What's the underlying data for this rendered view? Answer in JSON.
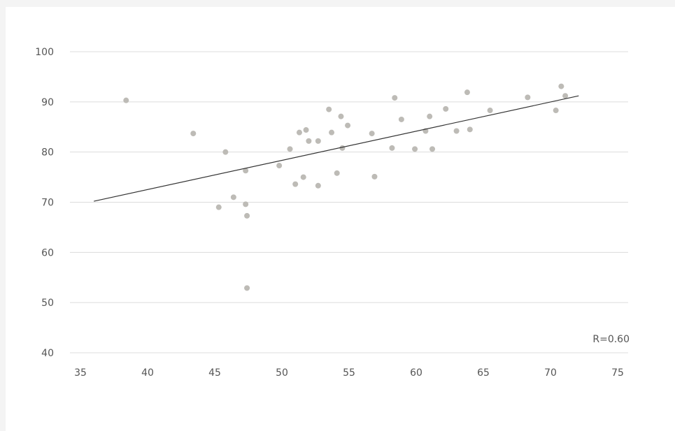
{
  "chart_data": {
    "type": "scatter",
    "title": "",
    "xlabel": "",
    "ylabel": "",
    "xlim": [
      35,
      75
    ],
    "ylim": [
      40,
      100
    ],
    "x_ticks": [
      35,
      40,
      45,
      50,
      55,
      60,
      65,
      70,
      75
    ],
    "y_ticks": [
      40,
      50,
      60,
      70,
      80,
      90,
      100
    ],
    "grid": "horizontal",
    "annotation": "R=0.60",
    "trendline": {
      "x": [
        36,
        72.1
      ],
      "y": [
        70.2,
        91.2
      ]
    },
    "colors": {
      "points": "#bdbbb6",
      "trendline": "#333333",
      "grid": "#dcdcdc"
    },
    "points": [
      {
        "x": 38.4,
        "y": 90.3
      },
      {
        "x": 43.4,
        "y": 83.7
      },
      {
        "x": 45.3,
        "y": 69.0
      },
      {
        "x": 45.8,
        "y": 80.0
      },
      {
        "x": 46.4,
        "y": 71.0
      },
      {
        "x": 47.3,
        "y": 76.3
      },
      {
        "x": 47.3,
        "y": 69.6
      },
      {
        "x": 47.4,
        "y": 67.3
      },
      {
        "x": 47.4,
        "y": 52.9
      },
      {
        "x": 49.8,
        "y": 77.3
      },
      {
        "x": 50.6,
        "y": 80.6
      },
      {
        "x": 51.0,
        "y": 73.6
      },
      {
        "x": 51.3,
        "y": 83.9
      },
      {
        "x": 51.6,
        "y": 75.0
      },
      {
        "x": 51.8,
        "y": 84.4
      },
      {
        "x": 52.0,
        "y": 82.2
      },
      {
        "x": 52.7,
        "y": 82.2
      },
      {
        "x": 52.7,
        "y": 73.3
      },
      {
        "x": 53.5,
        "y": 88.5
      },
      {
        "x": 53.7,
        "y": 83.9
      },
      {
        "x": 54.1,
        "y": 75.8
      },
      {
        "x": 54.4,
        "y": 87.1
      },
      {
        "x": 54.5,
        "y": 80.8
      },
      {
        "x": 54.9,
        "y": 85.3
      },
      {
        "x": 56.7,
        "y": 83.7
      },
      {
        "x": 56.9,
        "y": 75.1
      },
      {
        "x": 58.2,
        "y": 80.8
      },
      {
        "x": 58.4,
        "y": 90.8
      },
      {
        "x": 58.9,
        "y": 86.5
      },
      {
        "x": 59.9,
        "y": 80.6
      },
      {
        "x": 60.7,
        "y": 84.2
      },
      {
        "x": 61.0,
        "y": 87.1
      },
      {
        "x": 61.2,
        "y": 80.6
      },
      {
        "x": 62.2,
        "y": 88.6
      },
      {
        "x": 63.0,
        "y": 84.2
      },
      {
        "x": 63.8,
        "y": 91.9
      },
      {
        "x": 64.0,
        "y": 84.5
      },
      {
        "x": 65.5,
        "y": 88.3
      },
      {
        "x": 68.3,
        "y": 90.9
      },
      {
        "x": 70.4,
        "y": 88.3
      },
      {
        "x": 70.8,
        "y": 93.1
      },
      {
        "x": 71.1,
        "y": 91.2
      }
    ]
  }
}
